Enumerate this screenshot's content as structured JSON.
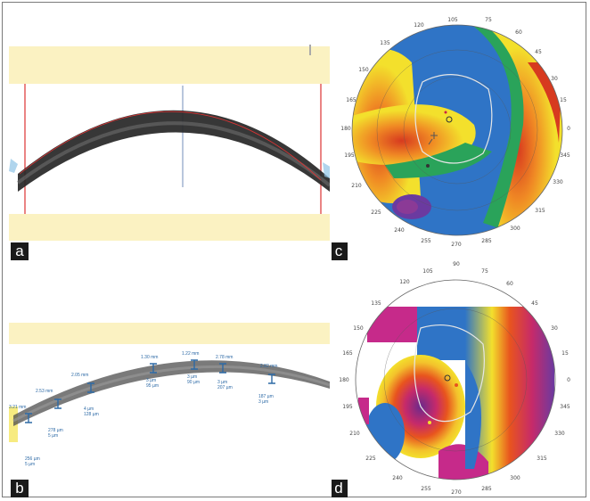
{
  "panels": {
    "a": {
      "label": "a"
    },
    "b": {
      "label": "b"
    },
    "c": {
      "label": "c"
    },
    "d": {
      "label": "d"
    }
  },
  "topo_c_ticks": [
    "105",
    "90",
    "75",
    "120",
    "60",
    "135",
    "45",
    "150",
    "30",
    "165",
    "15",
    "180",
    "0",
    "195",
    "345",
    "210",
    "330",
    "225",
    "315",
    "240",
    "300",
    "255",
    "270",
    "285"
  ],
  "topo_d_ticks": [
    "105",
    "90",
    "75",
    "120",
    "60",
    "135",
    "45",
    "150",
    "30",
    "165",
    "15",
    "180",
    "0",
    "195",
    "345",
    "210",
    "330",
    "225",
    "315",
    "240",
    "300",
    "255",
    "270",
    "285"
  ],
  "measurements_b": [
    {
      "top": "3.21 mm",
      "bottom": "256 µm\n5 µm"
    },
    {
      "top": "2.53 mm",
      "bottom": "278 µm\n5 µm"
    },
    {
      "top": "2.05 mm",
      "bottom": "4 µm\n128 µm"
    },
    {
      "top": "1.30 mm",
      "bottom": "3 µm\n95 µm"
    },
    {
      "top": "1.22 mm",
      "bottom": "3 µm\n90 µm"
    },
    {
      "top": "2.78 mm",
      "bottom": "3 µm\n207 µm"
    },
    {
      "top": "2.82 mm",
      "bottom": "187 µm\n3 µm"
    }
  ],
  "colors": {
    "frame": "#7a7a7a",
    "label_bg": "#1a1a1a",
    "slice_band": "#fbf2c2",
    "tissue": "#1f1f1f",
    "edge_line": "#d33"
  }
}
